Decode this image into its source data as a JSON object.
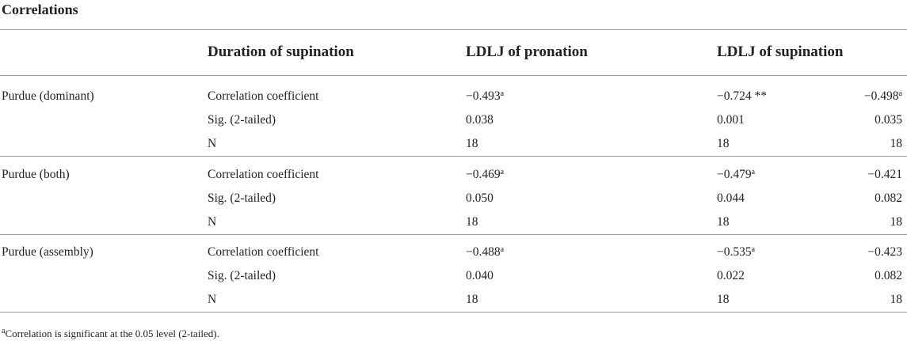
{
  "title": "Correlations",
  "table": {
    "header": [
      "Duration of supination",
      "LDLJ of pronation",
      "LDLJ of supination"
    ],
    "groups": [
      {
        "label": "Purdue (dominant)",
        "rows": [
          {
            "stat": "Correlation coefficient",
            "values": [
              {
                "text": "−0.493",
                "sup": "a"
              },
              {
                "text": "−0.724 **"
              },
              {
                "text": "−0.498",
                "sup": "a"
              }
            ]
          },
          {
            "stat": "Sig. (2-tailed)",
            "values": [
              {
                "text": "0.038"
              },
              {
                "text": "0.001"
              },
              {
                "text": "0.035"
              }
            ]
          },
          {
            "stat": "N",
            "values": [
              {
                "text": "18"
              },
              {
                "text": "18"
              },
              {
                "text": "18"
              }
            ]
          }
        ]
      },
      {
        "label": "Purdue (both)",
        "rows": [
          {
            "stat": "Correlation coefficient",
            "values": [
              {
                "text": "−0.469",
                "sup": "a"
              },
              {
                "text": "−0.479",
                "sup": "a"
              },
              {
                "text": "−0.421"
              }
            ]
          },
          {
            "stat": "Sig. (2-tailed)",
            "values": [
              {
                "text": "0.050"
              },
              {
                "text": "0.044"
              },
              {
                "text": "0.082"
              }
            ]
          },
          {
            "stat": "N",
            "values": [
              {
                "text": "18"
              },
              {
                "text": "18"
              },
              {
                "text": "18"
              }
            ]
          }
        ]
      },
      {
        "label": "Purdue (assembly)",
        "rows": [
          {
            "stat": "Correlation coefficient",
            "values": [
              {
                "text": "−0.488",
                "sup": "a"
              },
              {
                "text": "−0.535",
                "sup": "a"
              },
              {
                "text": "−0.423"
              }
            ]
          },
          {
            "stat": "Sig. (2-tailed)",
            "values": [
              {
                "text": "0.040"
              },
              {
                "text": "0.022"
              },
              {
                "text": "0.082"
              }
            ]
          },
          {
            "stat": "N",
            "values": [
              {
                "text": "18"
              },
              {
                "text": "18"
              },
              {
                "text": "18"
              }
            ]
          }
        ]
      }
    ]
  },
  "footnote": {
    "mark": "a",
    "text": "Correlation is significant at the 0.05 level (2-tailed)."
  }
}
